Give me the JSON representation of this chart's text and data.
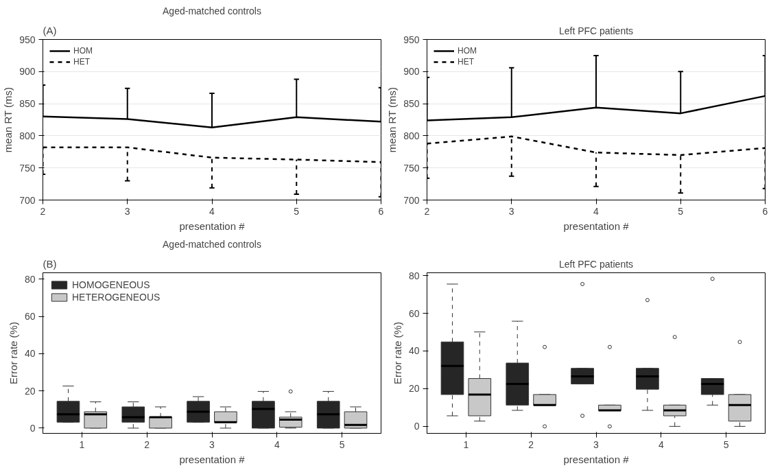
{
  "chart_data": [
    {
      "type": "line",
      "title": "Aged-matched controls",
      "xlabel": "presentation #",
      "ylabel": "mean RT (ms)",
      "annotations": [
        "(A)"
      ],
      "x": [
        2,
        3,
        4,
        5,
        6
      ],
      "xlim": [
        2,
        6
      ],
      "xticks": [
        2,
        3,
        4,
        5,
        6
      ],
      "ylim": [
        700,
        950
      ],
      "yticks": [
        700,
        750,
        800,
        850,
        900,
        950
      ],
      "grid": "y",
      "legend": "top left",
      "series": [
        {
          "name": "HOM",
          "color": "#000000",
          "line_style": "solid",
          "values": [
            830,
            826,
            813,
            829,
            822
          ],
          "errors": [
            [
              830,
              879
            ],
            [
              826,
              874
            ],
            [
              813,
              866
            ],
            [
              829,
              888
            ],
            [
              822,
              875
            ]
          ]
        },
        {
          "name": "HET",
          "color": "#000000",
          "line_style": "dashed",
          "values": [
            782,
            782,
            766,
            763,
            759
          ],
          "errors": [
            [
              740,
              782
            ],
            [
              730,
              782
            ],
            [
              719,
              766
            ],
            [
              709,
              763
            ],
            [
              705,
              759
            ]
          ]
        }
      ]
    },
    {
      "type": "line",
      "title": "Left PFC patients",
      "xlabel": "presentation #",
      "ylabel": "mean RT (ms)",
      "x": [
        2,
        3,
        4,
        5,
        6
      ],
      "xlim": [
        2,
        6
      ],
      "xticks": [
        2,
        3,
        4,
        5,
        6
      ],
      "ylim": [
        700,
        950
      ],
      "yticks": [
        700,
        750,
        800,
        850,
        900,
        950
      ],
      "grid": "y",
      "legend": "top left",
      "series": [
        {
          "name": "HOM",
          "color": "#000000",
          "line_style": "solid",
          "values": [
            824,
            829,
            844,
            835,
            862
          ],
          "errors": [
            [
              824,
              891
            ],
            [
              829,
              906
            ],
            [
              844,
              925
            ],
            [
              835,
              900
            ],
            [
              862,
              925
            ]
          ]
        },
        {
          "name": "HET",
          "color": "#000000",
          "line_style": "dashed",
          "values": [
            788,
            799,
            774,
            770,
            781
          ],
          "errors": [
            [
              734,
              788
            ],
            [
              737,
              799
            ],
            [
              721,
              774
            ],
            [
              711,
              770
            ],
            [
              718,
              781
            ]
          ]
        }
      ]
    },
    {
      "type": "box",
      "title": "Aged-matched controls",
      "xlabel": "presentation #",
      "ylabel": "Error rate (%)",
      "annotations": [
        "(B)"
      ],
      "categories": [
        "1",
        "2",
        "3",
        "4",
        "5"
      ],
      "ylim": [
        -2.8,
        83.4
      ],
      "yticks": [
        0,
        20,
        40,
        60,
        80
      ],
      "grid": false,
      "legend": "top left",
      "series": [
        {
          "name": "HOMOGENEOUS",
          "color": "#262626",
          "boxes": [
            {
              "low": 3.2,
              "q1": 3.2,
              "median": 7.4,
              "q3": 14.4,
              "high": 22.6
            },
            {
              "low": 0,
              "q1": 3.2,
              "median": 5.9,
              "q3": 11.4,
              "high": 14.1
            },
            {
              "low": 3.2,
              "q1": 3.2,
              "median": 8.8,
              "q3": 14.4,
              "high": 16.9
            },
            {
              "low": 0,
              "q1": 0,
              "median": 10.3,
              "q3": 14.4,
              "high": 19.7
            },
            {
              "low": 0,
              "q1": 0,
              "median": 7.4,
              "q3": 14.4,
              "high": 19.7
            }
          ]
        },
        {
          "name": "HETEROGENEOUS",
          "color": "#c8c8c8",
          "boxes": [
            {
              "low": 0,
              "q1": 0,
              "median": 7.4,
              "q3": 8.8,
              "high": 14.1
            },
            {
              "low": 0,
              "q1": 0,
              "median": 5.9,
              "q3": 5.9,
              "high": 11.4
            },
            {
              "low": 0,
              "q1": 3.2,
              "median": 3.2,
              "q3": 8.8,
              "high": 11.4
            },
            {
              "low": 0,
              "q1": 0.5,
              "median": 4.6,
              "q3": 5.9,
              "high": 8.8,
              "outliers": [
                19.7
              ]
            },
            {
              "low": 0,
              "q1": 0,
              "median": 1.7,
              "q3": 8.8,
              "high": 11.4
            }
          ]
        }
      ]
    },
    {
      "type": "box",
      "title": "Left PFC patients",
      "xlabel": "presentation #",
      "ylabel": "Error rate (%)",
      "categories": [
        "1",
        "2",
        "3",
        "4",
        "5"
      ],
      "ylim": [
        -3.7,
        81.5
      ],
      "yticks": [
        0,
        20,
        40,
        60,
        80
      ],
      "grid": false,
      "series": [
        {
          "color": "#262626",
          "boxes": [
            {
              "low": 5.6,
              "q1": 16.9,
              "median": 32.1,
              "q3": 44.8,
              "high": 75.5
            },
            {
              "low": 8.5,
              "q1": 11.3,
              "median": 22.5,
              "q3": 33.6,
              "high": 55.8
            },
            {
              "low": 22.5,
              "q1": 22.5,
              "median": 26.5,
              "q3": 30.8,
              "high": 30.8,
              "outliers": [
                75.5,
                5.6
              ]
            },
            {
              "low": 8.5,
              "q1": 19.7,
              "median": 26.5,
              "q3": 30.8,
              "high": 30.8,
              "outliers": [
                67.0
              ]
            },
            {
              "low": 11.3,
              "q1": 16.9,
              "median": 22.5,
              "q3": 25.4,
              "high": 25.4,
              "outliers": [
                78.3
              ]
            }
          ]
        },
        {
          "color": "#c8c8c8",
          "boxes": [
            {
              "low": 2.8,
              "q1": 5.6,
              "median": 16.9,
              "q3": 25.4,
              "high": 50.1
            },
            {
              "low": 11.3,
              "q1": 11.3,
              "median": 11.3,
              "q3": 16.9,
              "high": 16.9,
              "outliers": [
                42.1,
                0
              ]
            },
            {
              "low": 8.5,
              "q1": 8.5,
              "median": 8.5,
              "q3": 11.3,
              "high": 11.3,
              "outliers": [
                42.1,
                0
              ]
            },
            {
              "low": 0,
              "q1": 5.6,
              "median": 8.5,
              "q3": 11.3,
              "high": 11.3,
              "outliers": [
                47.4
              ]
            },
            {
              "low": 0,
              "q1": 2.8,
              "median": 11.3,
              "q3": 16.9,
              "high": 16.9,
              "outliers": [
                44.8
              ]
            }
          ]
        }
      ]
    }
  ]
}
